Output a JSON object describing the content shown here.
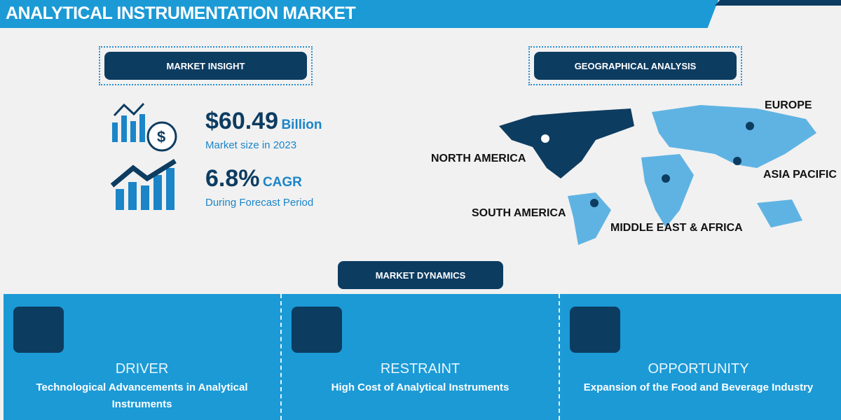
{
  "header": {
    "title": "ANALYTICAL INSTRUMENTATION MARKET"
  },
  "sections": {
    "insight": "MARKET INSIGHT",
    "geo": "GEOGRAPHICAL ANALYSIS",
    "dynamics": "MARKET DYNAMICS"
  },
  "insight": {
    "size_value": "$60.49",
    "size_unit": "Billion",
    "size_label": "Market size in 2023",
    "cagr_value": "6.8%",
    "cagr_unit": "CAGR",
    "cagr_label": "During Forecast Period"
  },
  "regions": [
    "NORTH AMERICA",
    "EUROPE",
    "ASIA PACIFIC",
    "SOUTH AMERICA",
    "MIDDLE EAST & AFRICA"
  ],
  "dynamics": [
    {
      "heading": "DRIVER",
      "text": "Technological Advancements in Analytical Instruments",
      "icon": "monitor-analysis-icon"
    },
    {
      "heading": "RESTRAINT",
      "text": "High Cost of Analytical Instruments",
      "icon": "declining-chart-icon"
    },
    {
      "heading": "OPPORTUNITY",
      "text": "Expansion of the Food and Beverage Industry",
      "icon": "dollar-lightbulb-icon"
    }
  ],
  "colors": {
    "primary": "#1b9ad6",
    "navy": "#0d3c61",
    "map_light": "#5fb3e3",
    "background": "#f1f1f1"
  }
}
